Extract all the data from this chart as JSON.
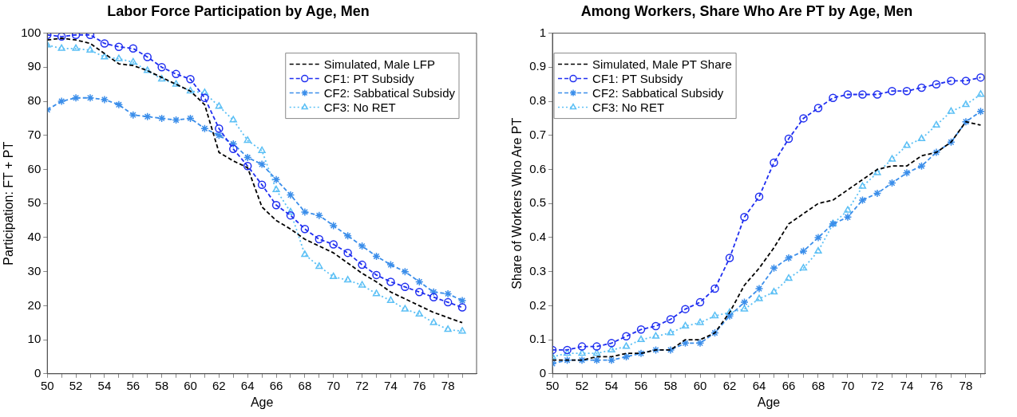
{
  "chart_data": [
    {
      "type": "line",
      "title": "Labor Force Participation by Age, Men",
      "xlabel": "Age",
      "ylabel": "Participation: FT + PT",
      "legend": "top right",
      "x": [
        50,
        51,
        52,
        53,
        54,
        55,
        56,
        57,
        58,
        59,
        60,
        61,
        62,
        63,
        64,
        65,
        66,
        67,
        68,
        69,
        70,
        71,
        72,
        73,
        74,
        75,
        76,
        77,
        78,
        79
      ],
      "xlim": [
        50,
        80
      ],
      "xticks": [
        50,
        {
          "value": 51,
          "label": null
        },
        52,
        {
          "value": 53,
          "label": null
        },
        54,
        {
          "value": 55,
          "label": null
        },
        56,
        {
          "value": 57,
          "label": null
        },
        58,
        {
          "value": 59,
          "label": null
        },
        60,
        {
          "value": 61,
          "label": null
        },
        62,
        {
          "value": 63,
          "label": null
        },
        64,
        {
          "value": 65,
          "label": null
        },
        66,
        {
          "value": 67,
          "label": null
        },
        68,
        {
          "value": 69,
          "label": null
        },
        70,
        {
          "value": 71,
          "label": null
        },
        72,
        {
          "value": 73,
          "label": null
        },
        74,
        {
          "value": 75,
          "label": null
        },
        76,
        {
          "value": 77,
          "label": null
        },
        78,
        {
          "value": 79,
          "label": null
        }
      ],
      "ylim": [
        0,
        100
      ],
      "yticks": [
        0,
        10,
        20,
        30,
        40,
        50,
        60,
        70,
        80,
        90,
        100
      ],
      "series": [
        {
          "name": "Simulated, Male LFP",
          "color": "#000000",
          "marker": "none",
          "line_style": "dashed",
          "values": [
            98,
            98.5,
            98,
            97,
            94,
            91,
            90.5,
            89,
            87,
            85,
            83,
            79,
            65,
            62.5,
            60.5,
            49,
            45,
            42.5,
            39.5,
            37.5,
            35.5,
            32.5,
            29.5,
            27,
            24,
            22,
            20,
            18,
            16.5,
            15
          ]
        },
        {
          "name": "CF1: PT Subsidy",
          "color": "#1f2ef0",
          "marker": "circle",
          "line_style": "dashed",
          "values": [
            99.5,
            99,
            99.5,
            99.5,
            97,
            96,
            95.5,
            93,
            90,
            88,
            86.5,
            81,
            72,
            66,
            61,
            55.5,
            49.5,
            46.5,
            42.5,
            39.5,
            38,
            35.5,
            32,
            29,
            27,
            25.5,
            24,
            22.5,
            21,
            19.5
          ]
        },
        {
          "name": "CF2: Sabbatical Subsidy",
          "color": "#3b8eea",
          "marker": "cross",
          "line_style": "dashed",
          "values": [
            77.5,
            80,
            81,
            81,
            80.5,
            79,
            76,
            75.5,
            75,
            74.5,
            75,
            72,
            70,
            67.5,
            63.5,
            61.5,
            57,
            52.5,
            47.5,
            46.5,
            43.5,
            40.5,
            37.5,
            34.5,
            32,
            30,
            27,
            24,
            23.5,
            21.5
          ]
        },
        {
          "name": "CF3: No RET",
          "color": "#5cc0f5",
          "marker": "triangle",
          "line_style": "dotted",
          "values": [
            96.5,
            95.5,
            95.5,
            95,
            93,
            92.5,
            91.5,
            89,
            86.5,
            85,
            83,
            82.5,
            78.5,
            74.5,
            68.5,
            65.5,
            54,
            47.5,
            35,
            31.5,
            28.5,
            27.5,
            26,
            23.5,
            21.5,
            19,
            17.5,
            15,
            13,
            12.5
          ]
        }
      ]
    },
    {
      "type": "line",
      "title": "Among Workers, Share Who Are PT by Age, Men",
      "xlabel": "Age",
      "ylabel": "Share of Workers Who Are PT",
      "legend": "top left",
      "x": [
        50,
        51,
        52,
        53,
        54,
        55,
        56,
        57,
        58,
        59,
        60,
        61,
        62,
        63,
        64,
        65,
        66,
        67,
        68,
        69,
        70,
        71,
        72,
        73,
        74,
        75,
        76,
        77,
        78,
        79
      ],
      "xlim": [
        50,
        79.3
      ],
      "xticks": [
        50,
        {
          "value": 51,
          "label": null
        },
        52,
        {
          "value": 53,
          "label": null
        },
        54,
        {
          "value": 55,
          "label": null
        },
        56,
        {
          "value": 57,
          "label": null
        },
        58,
        {
          "value": 59,
          "label": null
        },
        60,
        {
          "value": 61,
          "label": null
        },
        62,
        {
          "value": 63,
          "label": null
        },
        64,
        {
          "value": 65,
          "label": null
        },
        66,
        {
          "value": 67,
          "label": null
        },
        68,
        {
          "value": 69,
          "label": null
        },
        70,
        {
          "value": 71,
          "label": null
        },
        72,
        {
          "value": 73,
          "label": null
        },
        74,
        {
          "value": 75,
          "label": null
        },
        76,
        {
          "value": 77,
          "label": null
        },
        78,
        {
          "value": 79,
          "label": null
        }
      ],
      "ylim": [
        0,
        1
      ],
      "yticks": [
        0,
        0.1,
        0.2,
        0.3,
        0.4,
        0.5,
        0.6,
        0.7,
        0.8,
        0.9,
        1
      ],
      "series": [
        {
          "name": "Simulated, Male PT Share",
          "color": "#000000",
          "marker": "none",
          "line_style": "dashed",
          "values": [
            0.04,
            0.04,
            0.04,
            0.05,
            0.05,
            0.06,
            0.06,
            0.07,
            0.07,
            0.1,
            0.1,
            0.12,
            0.18,
            0.26,
            0.31,
            0.37,
            0.44,
            0.47,
            0.5,
            0.51,
            0.54,
            0.57,
            0.6,
            0.61,
            0.61,
            0.64,
            0.65,
            0.68,
            0.74,
            0.73
          ]
        },
        {
          "name": "CF1: PT Subsidy",
          "color": "#1f2ef0",
          "marker": "circle",
          "line_style": "dashed",
          "values": [
            0.07,
            0.07,
            0.08,
            0.08,
            0.09,
            0.11,
            0.13,
            0.14,
            0.16,
            0.19,
            0.21,
            0.25,
            0.34,
            0.46,
            0.52,
            0.62,
            0.69,
            0.75,
            0.78,
            0.81,
            0.82,
            0.82,
            0.82,
            0.83,
            0.83,
            0.84,
            0.85,
            0.86,
            0.86,
            0.87
          ]
        },
        {
          "name": "CF2: Sabbatical Subsidy",
          "color": "#3b8eea",
          "marker": "cross",
          "line_style": "dashed",
          "values": [
            0.03,
            0.04,
            0.04,
            0.04,
            0.04,
            0.05,
            0.06,
            0.07,
            0.07,
            0.09,
            0.09,
            0.12,
            0.17,
            0.21,
            0.25,
            0.31,
            0.34,
            0.36,
            0.4,
            0.44,
            0.46,
            0.51,
            0.53,
            0.56,
            0.59,
            0.61,
            0.65,
            0.68,
            0.74,
            0.77
          ]
        },
        {
          "name": "CF3: No RET",
          "color": "#5cc0f5",
          "marker": "triangle",
          "line_style": "dotted",
          "values": [
            0.05,
            0.06,
            0.06,
            0.06,
            0.07,
            0.08,
            0.1,
            0.11,
            0.12,
            0.14,
            0.15,
            0.17,
            0.18,
            0.19,
            0.22,
            0.24,
            0.28,
            0.31,
            0.36,
            0.44,
            0.48,
            0.55,
            0.59,
            0.63,
            0.67,
            0.69,
            0.73,
            0.77,
            0.79,
            0.82
          ]
        }
      ]
    }
  ]
}
